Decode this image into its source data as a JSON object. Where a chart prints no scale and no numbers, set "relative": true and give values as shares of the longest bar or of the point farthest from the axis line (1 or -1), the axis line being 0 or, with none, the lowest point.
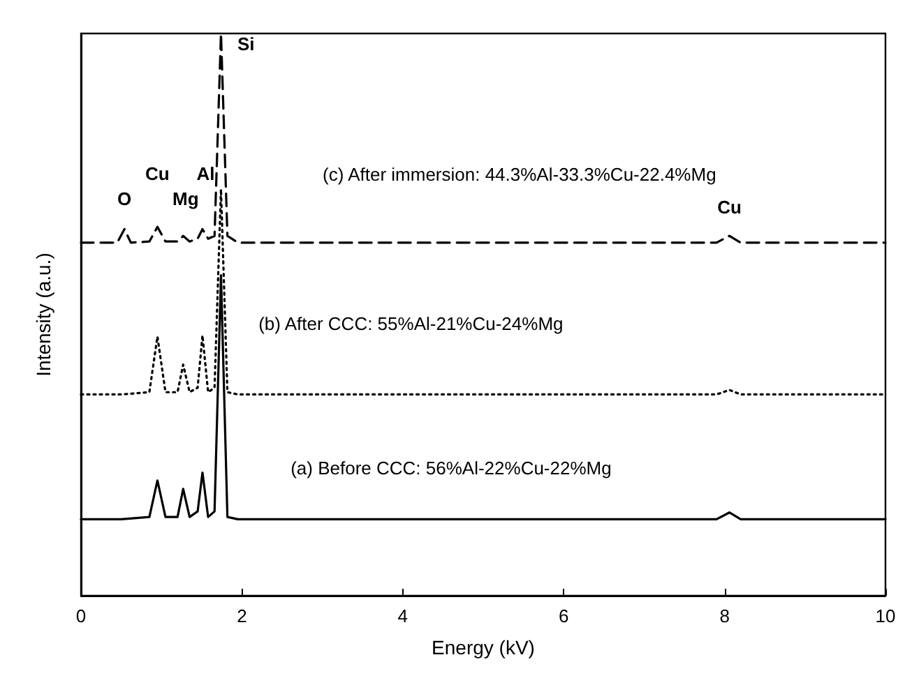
{
  "chart_data": {
    "type": "line",
    "relative": true,
    "xlabel": "Energy (kV)",
    "ylabel": "Intensity (a.u.)",
    "xlim": [
      0,
      10
    ],
    "xticks": [
      0,
      2,
      4,
      6,
      8,
      10
    ],
    "grid": false,
    "legend": false,
    "marker": "none",
    "series": [
      {
        "name": "(a) Before CCC: 56%Al-22%Cu-22%Mg",
        "color": "#000000",
        "line_style": "solid",
        "x": [
          0,
          0.5,
          0.85,
          0.95,
          1.05,
          1.2,
          1.27,
          1.35,
          1.45,
          1.51,
          1.58,
          1.66,
          1.74,
          1.82,
          1.95,
          7.9,
          8.06,
          8.2,
          10
        ],
        "values": [
          0.136,
          0.136,
          0.14,
          0.205,
          0.14,
          0.14,
          0.19,
          0.14,
          0.15,
          0.219,
          0.14,
          0.15,
          0.57,
          0.14,
          0.136,
          0.136,
          0.148,
          0.136,
          0.136
        ]
      },
      {
        "name": "(b) After CCC: 55%Al-21%Cu-24%Mg",
        "color": "#000000",
        "line_style": "dotted",
        "x": [
          0,
          0.5,
          0.85,
          0.95,
          1.05,
          1.2,
          1.27,
          1.35,
          1.45,
          1.51,
          1.58,
          1.66,
          1.74,
          1.82,
          1.95,
          7.9,
          8.06,
          8.2,
          10
        ],
        "values": [
          0.358,
          0.358,
          0.362,
          0.461,
          0.362,
          0.362,
          0.411,
          0.362,
          0.37,
          0.463,
          0.362,
          0.37,
          0.723,
          0.362,
          0.358,
          0.358,
          0.366,
          0.358,
          0.358
        ]
      },
      {
        "name": "(c) After immersion: 44.3%Al-33.3%Cu-22.4%Mg",
        "color": "#000000",
        "line_style": "dashed",
        "x": [
          0,
          0.45,
          0.54,
          0.62,
          0.85,
          0.95,
          1.05,
          1.2,
          1.27,
          1.35,
          1.45,
          1.51,
          1.58,
          1.66,
          1.74,
          1.82,
          1.95,
          7.9,
          8.06,
          8.2,
          10
        ],
        "values": [
          0.628,
          0.628,
          0.652,
          0.628,
          0.63,
          0.656,
          0.63,
          0.63,
          0.64,
          0.63,
          0.635,
          0.652,
          0.635,
          0.64,
          1,
          0.64,
          0.628,
          0.628,
          0.64,
          0.628,
          0.628
        ]
      }
    ],
    "annotations": [
      "O",
      "Cu",
      "Mg",
      "Al",
      "Si",
      "Cu"
    ]
  }
}
